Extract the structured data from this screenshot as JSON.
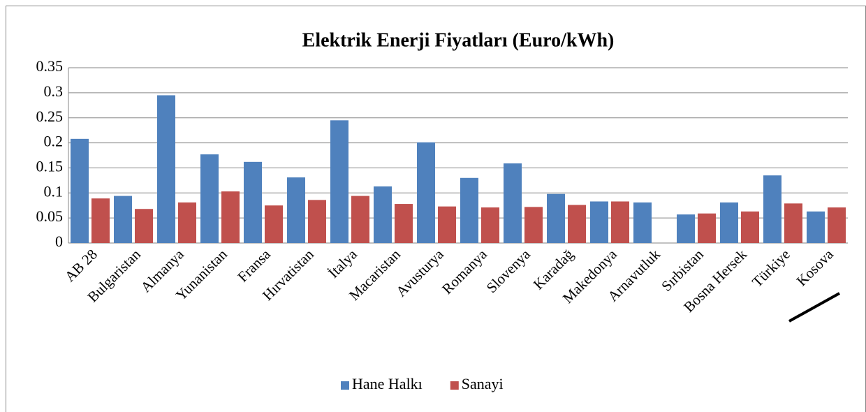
{
  "chart_data": {
    "type": "bar",
    "title": "Elektrik Enerji Fiyatları (Euro/kWh)",
    "categories": [
      "AB 28",
      "Bulgaristan",
      "Almanya",
      "Yunanistan",
      "Fransa",
      "Hırvatistan",
      "İtalya",
      "Macaristan",
      "Avusturya",
      "Romanya",
      "Slovenya",
      "Karadağ",
      "Makedonya",
      "Arnavutluk",
      "Sırbistan",
      "Bosna Hersek",
      "Türkiye",
      "Kosova"
    ],
    "series": [
      {
        "name": "Hane Halkı",
        "color": "#4f81bd",
        "values": [
          0.208,
          0.094,
          0.295,
          0.177,
          0.162,
          0.131,
          0.245,
          0.113,
          0.201,
          0.13,
          0.159,
          0.098,
          0.083,
          0.081,
          0.057,
          0.081,
          0.135,
          0.063
        ]
      },
      {
        "name": "Sanayi",
        "color": "#c0504d",
        "values": [
          0.089,
          0.068,
          0.081,
          0.103,
          0.075,
          0.086,
          0.094,
          0.078,
          0.073,
          0.071,
          0.072,
          0.076,
          0.083,
          null,
          0.059,
          0.063,
          0.079,
          0.071
        ]
      }
    ],
    "ylim": [
      0,
      0.35
    ],
    "yticks": [
      0,
      0.05,
      0.1,
      0.15,
      0.2,
      0.25,
      0.3,
      0.35
    ],
    "grid": true,
    "legend": "bottom"
  }
}
